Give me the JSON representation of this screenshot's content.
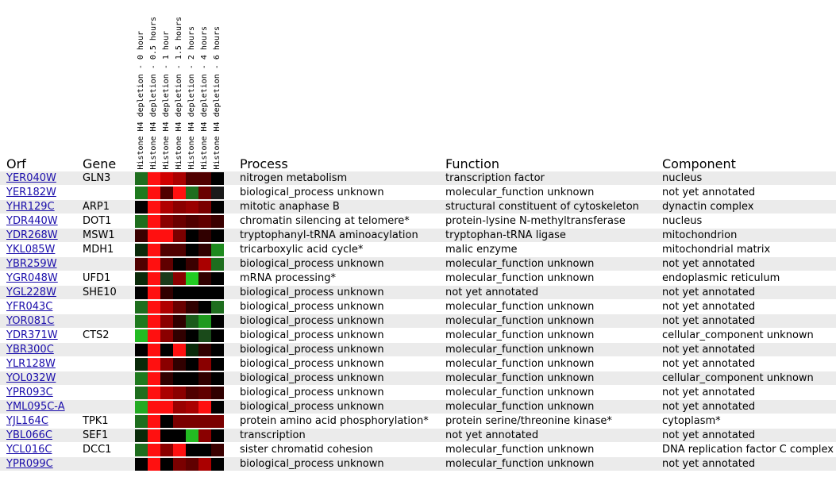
{
  "columns": {
    "orf": "Orf",
    "gene": "Gene",
    "process": "Process",
    "function": "Function",
    "component": "Component"
  },
  "heatmap_labels": [
    "Histone H4 depletion - 0 hour",
    "Histone H4 depletion - 0.5 hours",
    "Histone H4 depletion - 1 hour",
    "Histone H4 depletion - 1.5 hours",
    "Histone H4 depletion - 2 hours",
    "Histone H4 depletion - 4 hours",
    "Histone H4 depletion - 6 hours"
  ],
  "rows": [
    {
      "orf": "YER040W",
      "gene": "GLN3",
      "process": "nitrogen metabolism",
      "function": "transcription factor",
      "component": "nucleus",
      "heat": [
        "#1e6e1e",
        "#ff1010",
        "#d00000",
        "#aa0000",
        "#500000",
        "#500000",
        "#000000"
      ]
    },
    {
      "orf": "YER182W",
      "gene": "",
      "process": "biological_process unknown",
      "function": "molecular_function unknown",
      "component": "not yet annotated",
      "heat": [
        "#1e7a1e",
        "#ff1010",
        "#500000",
        "#ff1010",
        "#1e6e1e",
        "#6a0000",
        "#1a1a1a"
      ]
    },
    {
      "orf": "YHR129C",
      "gene": "ARP1",
      "process": "mitotic anaphase B",
      "function": "structural constituent of cytoskeleton",
      "component": "dynactin complex",
      "heat": [
        "#000000",
        "#ff1010",
        "#b00000",
        "#8a0000",
        "#9a0000",
        "#7a0000",
        "#000000"
      ]
    },
    {
      "orf": "YDR440W",
      "gene": "DOT1",
      "process": "chromatin silencing at telomere*",
      "function": "protein-lysine N-methyltransferase",
      "component": "nucleus",
      "heat": [
        "#1e6e1e",
        "#ff1010",
        "#8a0000",
        "#6a0000",
        "#500000",
        "#600000",
        "#3a0000"
      ]
    },
    {
      "orf": "YDR268W",
      "gene": "MSW1",
      "process": "tryptophanyl-tRNA aminoacylation",
      "function": "tryptophan-tRNA ligase",
      "component": "mitochondrion",
      "heat": [
        "#3a0000",
        "#ff1010",
        "#ff1010",
        "#7a0000",
        "#000000",
        "#300000",
        "#000000"
      ]
    },
    {
      "orf": "YKL085W",
      "gene": "MDH1",
      "process": "tricarboxylic acid cycle*",
      "function": "malic enzyme",
      "component": "mitochondrial matrix",
      "heat": [
        "#0a2a0a",
        "#ff1010",
        "#500000",
        "#500000",
        "#000000",
        "#300000",
        "#1e8a1e"
      ]
    },
    {
      "orf": "YBR259W",
      "gene": "",
      "process": "biological_process unknown",
      "function": "molecular_function unknown",
      "component": "not yet annotated",
      "heat": [
        "#500000",
        "#ff1010",
        "#600000",
        "#000000",
        "#3a0000",
        "#aa0000",
        "#1e6e1e"
      ]
    },
    {
      "orf": "YGR048W",
      "gene": "UFD1",
      "process": "mRNA processing*",
      "function": "molecular_function unknown",
      "component": "endoplasmic reticulum",
      "heat": [
        "#0a2a0a",
        "#ff1010",
        "#1a3a1a",
        "#8a0000",
        "#22cc22",
        "#300000",
        "#000000"
      ]
    },
    {
      "orf": "YGL228W",
      "gene": "SHE10",
      "process": "biological_process unknown",
      "function": "not yet annotated",
      "component": "not yet annotated",
      "heat": [
        "#000000",
        "#ff1010",
        "#300000",
        "#000000",
        "#000000",
        "#000000",
        "#000000"
      ]
    },
    {
      "orf": "YFR043C",
      "gene": "",
      "process": "biological_process unknown",
      "function": "molecular_function unknown",
      "component": "not yet annotated",
      "heat": [
        "#1e6e1e",
        "#ff1010",
        "#b00000",
        "#6a0000",
        "#300000",
        "#000000",
        "#1e6e1e"
      ]
    },
    {
      "orf": "YOR081C",
      "gene": "",
      "process": "biological_process unknown",
      "function": "molecular_function unknown",
      "component": "not yet annotated",
      "heat": [
        "#1e7a1e",
        "#ff1010",
        "#8a0000",
        "#300000",
        "#1a5a1a",
        "#1e9a1e",
        "#000000"
      ]
    },
    {
      "orf": "YDR371W",
      "gene": "CTS2",
      "process": "biological_process unknown",
      "function": "molecular_function unknown",
      "component": "cellular_component unknown",
      "heat": [
        "#22bb22",
        "#ff1010",
        "#8a0000",
        "#300000",
        "#000000",
        "#1a4a1a",
        "#000000"
      ]
    },
    {
      "orf": "YBR300C",
      "gene": "",
      "process": "biological_process unknown",
      "function": "molecular_function unknown",
      "component": "not yet annotated",
      "heat": [
        "#000000",
        "#ff1010",
        "#000000",
        "#ff1010",
        "#0a2a0a",
        "#300000",
        "#000000"
      ]
    },
    {
      "orf": "YLR128W",
      "gene": "",
      "process": "biological_process unknown",
      "function": "molecular_function unknown",
      "component": "not yet annotated",
      "heat": [
        "#0a2a0a",
        "#ff1010",
        "#8a0000",
        "#300000",
        "#000000",
        "#8a0000",
        "#000000"
      ]
    },
    {
      "orf": "YOL032W",
      "gene": "",
      "process": "biological_process unknown",
      "function": "molecular_function unknown",
      "component": "cellular_component unknown",
      "heat": [
        "#1e7a1e",
        "#ff1010",
        "#300000",
        "#000000",
        "#000000",
        "#300000",
        "#000000"
      ]
    },
    {
      "orf": "YPR093C",
      "gene": "",
      "process": "biological_process unknown",
      "function": "molecular_function unknown",
      "component": "not yet annotated",
      "heat": [
        "#1e6e1e",
        "#ff1010",
        "#aa0000",
        "#8a0000",
        "#500000",
        "#600000",
        "#300000"
      ]
    },
    {
      "orf": "YML095C-A",
      "gene": "",
      "process": "biological_process unknown",
      "function": "molecular_function unknown",
      "component": "not yet annotated",
      "heat": [
        "#22aa22",
        "#ff1010",
        "#ff1010",
        "#9a0000",
        "#aa0000",
        "#ff1010",
        "#000000"
      ]
    },
    {
      "orf": "YJL164C",
      "gene": "TPK1",
      "process": "protein amino acid phosphorylation*",
      "function": "protein serine/threonine kinase*",
      "component": "cytoplasm*",
      "heat": [
        "#1e6e1e",
        "#ff1010",
        "#000000",
        "#7a0000",
        "#7a0000",
        "#7a0000",
        "#7a0000"
      ]
    },
    {
      "orf": "YBL066C",
      "gene": "SEF1",
      "process": "transcription",
      "function": "not yet annotated",
      "component": "not yet annotated",
      "heat": [
        "#0a2a0a",
        "#ff1010",
        "#000000",
        "#000000",
        "#22bb22",
        "#8a0000",
        "#000000"
      ]
    },
    {
      "orf": "YCL016C",
      "gene": "DCC1",
      "process": "sister chromatid cohesion",
      "function": "molecular_function unknown",
      "component": "DNA replication factor C complex",
      "heat": [
        "#1e6e1e",
        "#ff1010",
        "#8a0000",
        "#ff1010",
        "#000000",
        "#000000",
        "#3a0000"
      ]
    },
    {
      "orf": "YPR099C",
      "gene": "",
      "process": "biological_process unknown",
      "function": "molecular_function unknown",
      "component": "not yet annotated",
      "heat": [
        "#000000",
        "#ff1010",
        "#000000",
        "#7a0000",
        "#600000",
        "#aa0000",
        "#000000"
      ]
    }
  ]
}
